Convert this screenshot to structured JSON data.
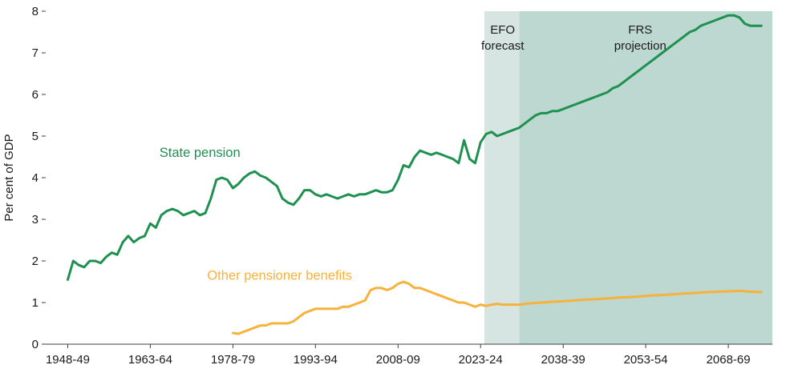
{
  "chart_data": {
    "type": "line",
    "title": "",
    "xlabel": "",
    "ylabel": "Per cent of GDP",
    "ylim": [
      0,
      8
    ],
    "yticks": [
      0,
      1,
      2,
      3,
      4,
      5,
      6,
      7,
      8
    ],
    "xlim": [
      1944,
      2076
    ],
    "xticks": [
      {
        "x": 1948,
        "label": "1948-49"
      },
      {
        "x": 1963,
        "label": "1963-64"
      },
      {
        "x": 1978,
        "label": "1978-79"
      },
      {
        "x": 1993,
        "label": "1993-94"
      },
      {
        "x": 2008,
        "label": "2008-09"
      },
      {
        "x": 2023,
        "label": "2023-24"
      },
      {
        "x": 2038,
        "label": "2038-39"
      },
      {
        "x": 2053,
        "label": "2053-54"
      },
      {
        "x": 2068,
        "label": "2068-69"
      }
    ],
    "grid": false,
    "legend_position": "inline-labels",
    "regions": [
      {
        "name": "efo-forecast",
        "label_lines": [
          "EFO",
          "forecast"
        ],
        "x0": 2023.7,
        "x1": 2030,
        "label_x": 2027,
        "color": "#d6e5e1"
      },
      {
        "name": "frs-projection",
        "label_lines": [
          "FRS",
          "projection"
        ],
        "x0": 2030,
        "x1": 2076,
        "label_x": 2052,
        "color": "#bdd7d1"
      }
    ],
    "series": [
      {
        "name": "State pension",
        "slug": "state-pension",
        "color": "#1e9150",
        "label_pos": {
          "x": 1972,
          "y": 4.5
        },
        "points": [
          [
            1948,
            1.55
          ],
          [
            1949,
            2.0
          ],
          [
            1950,
            1.9
          ],
          [
            1951,
            1.85
          ],
          [
            1952,
            2.0
          ],
          [
            1953,
            2.0
          ],
          [
            1954,
            1.95
          ],
          [
            1955,
            2.1
          ],
          [
            1956,
            2.2
          ],
          [
            1957,
            2.15
          ],
          [
            1958,
            2.45
          ],
          [
            1959,
            2.6
          ],
          [
            1960,
            2.45
          ],
          [
            1961,
            2.55
          ],
          [
            1962,
            2.6
          ],
          [
            1963,
            2.9
          ],
          [
            1964,
            2.8
          ],
          [
            1965,
            3.1
          ],
          [
            1966,
            3.2
          ],
          [
            1967,
            3.25
          ],
          [
            1968,
            3.2
          ],
          [
            1969,
            3.1
          ],
          [
            1970,
            3.15
          ],
          [
            1971,
            3.2
          ],
          [
            1972,
            3.1
          ],
          [
            1973,
            3.15
          ],
          [
            1974,
            3.5
          ],
          [
            1975,
            3.95
          ],
          [
            1976,
            4.0
          ],
          [
            1977,
            3.95
          ],
          [
            1978,
            3.75
          ],
          [
            1979,
            3.85
          ],
          [
            1980,
            4.0
          ],
          [
            1981,
            4.1
          ],
          [
            1982,
            4.15
          ],
          [
            1983,
            4.05
          ],
          [
            1984,
            4.0
          ],
          [
            1985,
            3.9
          ],
          [
            1986,
            3.8
          ],
          [
            1987,
            3.5
          ],
          [
            1988,
            3.4
          ],
          [
            1989,
            3.35
          ],
          [
            1990,
            3.5
          ],
          [
            1991,
            3.7
          ],
          [
            1992,
            3.7
          ],
          [
            1993,
            3.6
          ],
          [
            1994,
            3.55
          ],
          [
            1995,
            3.6
          ],
          [
            1996,
            3.55
          ],
          [
            1997,
            3.5
          ],
          [
            1998,
            3.55
          ],
          [
            1999,
            3.6
          ],
          [
            2000,
            3.55
          ],
          [
            2001,
            3.6
          ],
          [
            2002,
            3.6
          ],
          [
            2003,
            3.65
          ],
          [
            2004,
            3.7
          ],
          [
            2005,
            3.65
          ],
          [
            2006,
            3.65
          ],
          [
            2007,
            3.7
          ],
          [
            2008,
            3.95
          ],
          [
            2009,
            4.3
          ],
          [
            2010,
            4.25
          ],
          [
            2011,
            4.5
          ],
          [
            2012,
            4.65
          ],
          [
            2013,
            4.6
          ],
          [
            2014,
            4.55
          ],
          [
            2015,
            4.6
          ],
          [
            2016,
            4.55
          ],
          [
            2017,
            4.5
          ],
          [
            2018,
            4.45
          ],
          [
            2019,
            4.35
          ],
          [
            2020,
            4.9
          ],
          [
            2021,
            4.45
          ],
          [
            2022,
            4.35
          ],
          [
            2023,
            4.85
          ],
          [
            2024,
            5.05
          ],
          [
            2025,
            5.1
          ],
          [
            2026,
            5.0
          ],
          [
            2027,
            5.05
          ],
          [
            2028,
            5.1
          ],
          [
            2029,
            5.15
          ],
          [
            2030,
            5.2
          ],
          [
            2031,
            5.3
          ],
          [
            2032,
            5.4
          ],
          [
            2033,
            5.5
          ],
          [
            2034,
            5.55
          ],
          [
            2035,
            5.55
          ],
          [
            2036,
            5.6
          ],
          [
            2037,
            5.6
          ],
          [
            2038,
            5.65
          ],
          [
            2039,
            5.7
          ],
          [
            2040,
            5.75
          ],
          [
            2041,
            5.8
          ],
          [
            2042,
            5.85
          ],
          [
            2043,
            5.9
          ],
          [
            2044,
            5.95
          ],
          [
            2045,
            6.0
          ],
          [
            2046,
            6.05
          ],
          [
            2047,
            6.15
          ],
          [
            2048,
            6.2
          ],
          [
            2049,
            6.3
          ],
          [
            2050,
            6.4
          ],
          [
            2051,
            6.5
          ],
          [
            2052,
            6.6
          ],
          [
            2053,
            6.7
          ],
          [
            2054,
            6.8
          ],
          [
            2055,
            6.9
          ],
          [
            2056,
            7.0
          ],
          [
            2057,
            7.1
          ],
          [
            2058,
            7.2
          ],
          [
            2059,
            7.3
          ],
          [
            2060,
            7.4
          ],
          [
            2061,
            7.5
          ],
          [
            2062,
            7.55
          ],
          [
            2063,
            7.65
          ],
          [
            2064,
            7.7
          ],
          [
            2065,
            7.75
          ],
          [
            2066,
            7.8
          ],
          [
            2067,
            7.85
          ],
          [
            2068,
            7.9
          ],
          [
            2069,
            7.9
          ],
          [
            2070,
            7.85
          ],
          [
            2071,
            7.7
          ],
          [
            2072,
            7.65
          ],
          [
            2073,
            7.65
          ],
          [
            2074,
            7.65
          ]
        ]
      },
      {
        "name": "Other pensioner benefits",
        "slug": "other-pensioner-benefits",
        "color": "#f6b23a",
        "label_pos": {
          "x": 1986.5,
          "y": 1.55
        },
        "points": [
          [
            1978,
            0.27
          ],
          [
            1979,
            0.25
          ],
          [
            1980,
            0.3
          ],
          [
            1981,
            0.35
          ],
          [
            1982,
            0.4
          ],
          [
            1983,
            0.45
          ],
          [
            1984,
            0.45
          ],
          [
            1985,
            0.5
          ],
          [
            1986,
            0.5
          ],
          [
            1987,
            0.5
          ],
          [
            1988,
            0.5
          ],
          [
            1989,
            0.55
          ],
          [
            1990,
            0.65
          ],
          [
            1991,
            0.75
          ],
          [
            1992,
            0.8
          ],
          [
            1993,
            0.85
          ],
          [
            1994,
            0.85
          ],
          [
            1995,
            0.85
          ],
          [
            1996,
            0.85
          ],
          [
            1997,
            0.85
          ],
          [
            1998,
            0.9
          ],
          [
            1999,
            0.9
          ],
          [
            2000,
            0.95
          ],
          [
            2001,
            1.0
          ],
          [
            2002,
            1.05
          ],
          [
            2003,
            1.3
          ],
          [
            2004,
            1.35
          ],
          [
            2005,
            1.35
          ],
          [
            2006,
            1.3
          ],
          [
            2007,
            1.35
          ],
          [
            2008,
            1.45
          ],
          [
            2009,
            1.5
          ],
          [
            2010,
            1.45
          ],
          [
            2011,
            1.35
          ],
          [
            2012,
            1.35
          ],
          [
            2013,
            1.3
          ],
          [
            2014,
            1.25
          ],
          [
            2015,
            1.2
          ],
          [
            2016,
            1.15
          ],
          [
            2017,
            1.1
          ],
          [
            2018,
            1.05
          ],
          [
            2019,
            1.0
          ],
          [
            2020,
            1.0
          ],
          [
            2021,
            0.95
          ],
          [
            2022,
            0.9
          ],
          [
            2023,
            0.95
          ],
          [
            2024,
            0.92
          ],
          [
            2025,
            0.95
          ],
          [
            2026,
            0.97
          ],
          [
            2027,
            0.95
          ],
          [
            2028,
            0.95
          ],
          [
            2029,
            0.95
          ],
          [
            2030,
            0.95
          ],
          [
            2032,
            0.98
          ],
          [
            2034,
            1.0
          ],
          [
            2036,
            1.02
          ],
          [
            2038,
            1.03
          ],
          [
            2040,
            1.05
          ],
          [
            2042,
            1.07
          ],
          [
            2044,
            1.08
          ],
          [
            2046,
            1.1
          ],
          [
            2048,
            1.12
          ],
          [
            2050,
            1.13
          ],
          [
            2052,
            1.15
          ],
          [
            2054,
            1.17
          ],
          [
            2056,
            1.18
          ],
          [
            2058,
            1.2
          ],
          [
            2060,
            1.22
          ],
          [
            2062,
            1.23
          ],
          [
            2064,
            1.25
          ],
          [
            2066,
            1.26
          ],
          [
            2068,
            1.27
          ],
          [
            2070,
            1.28
          ],
          [
            2072,
            1.26
          ],
          [
            2074,
            1.25
          ]
        ]
      }
    ],
    "text_color": "#1a1a1a",
    "axis_color": "#404040"
  }
}
